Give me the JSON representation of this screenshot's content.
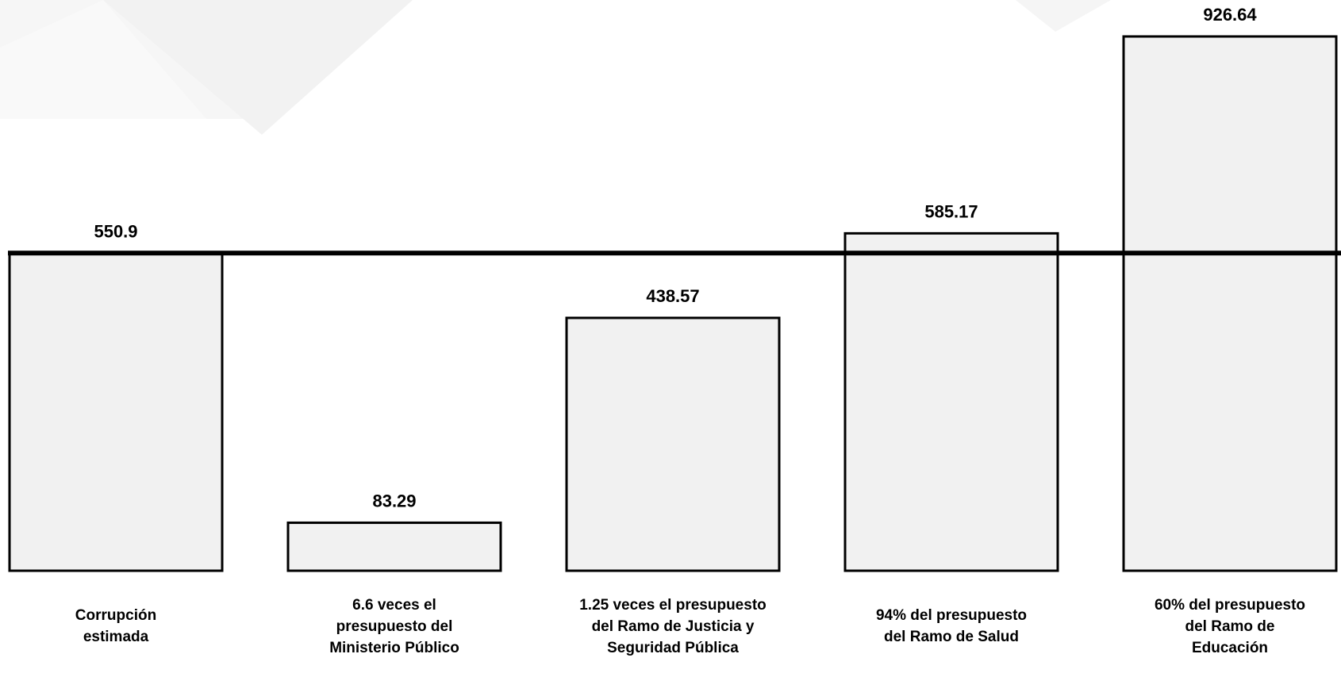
{
  "chart_data": {
    "type": "bar",
    "title": "",
    "xlabel": "",
    "ylabel": "",
    "ylim": [
      0,
      1000
    ],
    "categories": [
      [
        "Corrupción",
        "estimada"
      ],
      [
        "6.6 veces el",
        "presupuesto del",
        "Ministerio Público"
      ],
      [
        "1.25 veces el presupuesto",
        "del Ramo de Justicia y",
        "Seguridad Pública"
      ],
      [
        "94% del presupuesto",
        "del Ramo de Salud"
      ],
      [
        "60% del presupuesto",
        "del Ramo de",
        "Educación"
      ]
    ],
    "values": [
      550.9,
      83.29,
      438.57,
      585.17,
      926.64
    ],
    "value_labels": [
      "550.9",
      "83.29",
      "438.57",
      "585.17",
      "926.64"
    ],
    "reference_line": {
      "value": 550.9
    },
    "grid": false,
    "legend": "none",
    "colors": {
      "bar_fill": "#f1f1f1",
      "bar_stroke": "#000000",
      "reference_line": "#000000"
    }
  }
}
